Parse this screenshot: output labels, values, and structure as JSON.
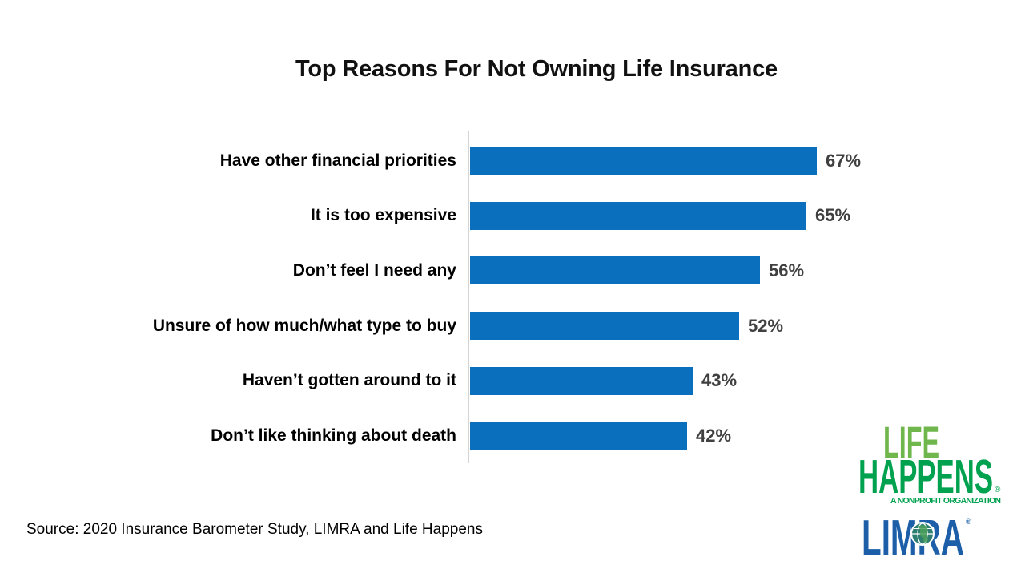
{
  "title": "Top Reasons For Not Owning Life Insurance",
  "source": "Source: 2020 Insurance Barometer Study, LIMRA and Life Happens",
  "chart_data": {
    "type": "bar",
    "orientation": "horizontal",
    "title": "Top Reasons For Not Owning Life Insurance",
    "categories": [
      "Have other financial priorities",
      "It is too expensive",
      "Don’t feel I need any",
      "Unsure of how much/what type to buy",
      "Haven’t gotten around to it",
      "Don’t like thinking about death"
    ],
    "values": [
      67,
      65,
      56,
      52,
      43,
      42
    ],
    "value_labels": [
      "67%",
      "65%",
      "56%",
      "52%",
      "43%",
      "42%"
    ],
    "xlabel": "",
    "ylabel": "",
    "xlim": [
      0,
      70
    ],
    "grid": false,
    "legend": false,
    "bar_color": "#0A70BE",
    "value_label_color": "#404040",
    "category_label_color": "#000000",
    "axis_line_color": "#d4d4d4"
  },
  "logos": {
    "life_happens": {
      "line1": "LIFE",
      "line2": "HAPPENS",
      "registered": "®",
      "tagline": "A NONPROFIT ORGANIZATION",
      "color_line1": "#6FB64C",
      "color_line2": "#00A24F"
    },
    "limra": {
      "text": "LIMRA",
      "registered": "®",
      "color": "#1C5FA8",
      "globe_color": "#2E7F71"
    }
  }
}
